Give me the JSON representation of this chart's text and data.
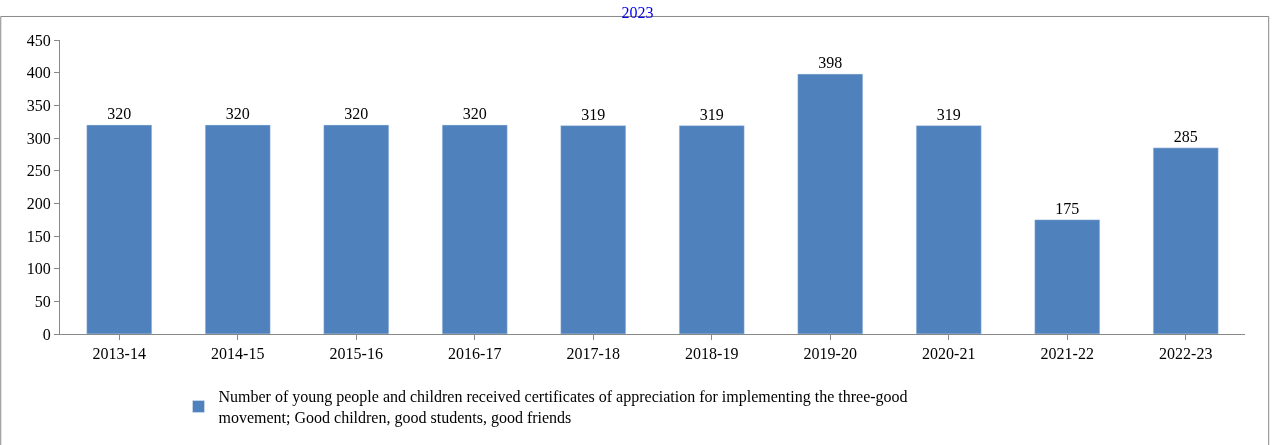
{
  "chart_data": {
    "type": "bar",
    "title": "2023",
    "categories": [
      "2013-14",
      "2014-15",
      "2015-16",
      "2016-17",
      "2017-18",
      "2018-19",
      "2019-20",
      "2020-21",
      "2021-22",
      "2022-23"
    ],
    "series": [
      {
        "name": "Number of young people and children received certificates of appreciation for implementing the three-good movement; Good children, good students, good friends",
        "color": "#4f81bd",
        "values": [
          320,
          320,
          320,
          320,
          319,
          319,
          398,
          319,
          175,
          285
        ]
      }
    ],
    "ylim": [
      0,
      450
    ],
    "yticks": [
      0,
      50,
      100,
      150,
      200,
      250,
      300,
      350,
      400,
      450
    ],
    "data_labels": true,
    "legend": "bottom"
  }
}
